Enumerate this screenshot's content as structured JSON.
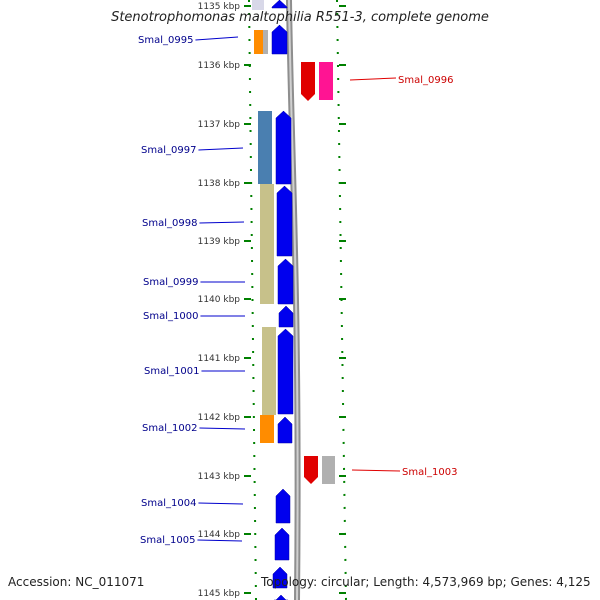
{
  "title": "Stenotrophomonas maltophilia R551-3, complete genome",
  "accession": "Accession: NC_011071",
  "topology": "Topology: circular; Length: 4,573,969 bp; Genes: 4,125",
  "colors": {
    "forward_gene": "#0000ee",
    "reverse_gene": "#e00000",
    "reverse_label": "#cc0000",
    "forward_label": "#00008b",
    "pink_gene": "#ff1493",
    "orange": "#ff8c00",
    "steel": "#4a7fb0",
    "khaki": "#c7c18a",
    "grey": "#b0b0b0",
    "axis": "#9a9a9a",
    "ticks": "#008000"
  },
  "scale": {
    "unit": "kbp",
    "ticks": [
      "1135 kbp",
      "1136 kbp",
      "1137 kbp",
      "1138 kbp",
      "1139 kbp",
      "1140 kbp",
      "1141 kbp",
      "1142 kbp",
      "1143 kbp",
      "1144 kbp",
      "1145 kbp"
    ]
  },
  "genes": [
    {
      "label": "Smal_0995",
      "strand": "+"
    },
    {
      "label": "Smal_0996",
      "strand": "-"
    },
    {
      "label": "Smal_0997",
      "strand": "+"
    },
    {
      "label": "Smal_0998",
      "strand": "+"
    },
    {
      "label": "Smal_0999",
      "strand": "+"
    },
    {
      "label": "Smal_1000",
      "strand": "+"
    },
    {
      "label": "Smal_1001",
      "strand": "+"
    },
    {
      "label": "Smal_1002",
      "strand": "+"
    },
    {
      "label": "Smal_1003",
      "strand": "-"
    },
    {
      "label": "Smal_1004",
      "strand": "+"
    },
    {
      "label": "Smal_1005",
      "strand": "+"
    }
  ]
}
